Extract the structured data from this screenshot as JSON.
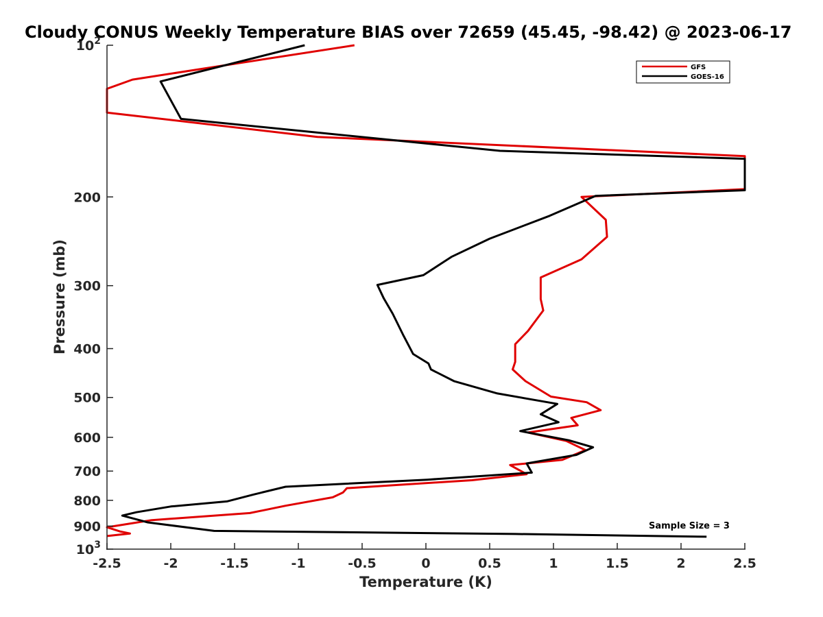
{
  "chart_data": {
    "type": "line",
    "title": "Cloudy CONUS Weekly Temperature BIAS over 72659 (45.45, -98.42) @ 2023-06-17",
    "xlabel": "Temperature (K)",
    "ylabel": "Pressure (mb)",
    "xlim": [
      -2.5,
      2.5
    ],
    "ylim": [
      100,
      1000
    ],
    "y_scale": "log",
    "y_reversed": true,
    "grid": false,
    "legend_position": "top-right",
    "x_ticks": [
      -2.5,
      -2,
      -1.5,
      -1,
      -0.5,
      0,
      0.5,
      1,
      1.5,
      2,
      2.5
    ],
    "x_tick_labels": [
      "-2.5",
      "-2",
      "-1.5",
      "-1",
      "-0.5",
      "0",
      "0.5",
      "1",
      "1.5",
      "2",
      "2.5"
    ],
    "y_ticks": [
      100,
      200,
      300,
      400,
      500,
      600,
      700,
      800,
      900,
      1000
    ],
    "y_tick_labels": [
      {
        "base": "10",
        "exp": "2"
      },
      {
        "base": "200",
        "exp": ""
      },
      {
        "base": "300",
        "exp": ""
      },
      {
        "base": "400",
        "exp": ""
      },
      {
        "base": "500",
        "exp": ""
      },
      {
        "base": "600",
        "exp": ""
      },
      {
        "base": "700",
        "exp": ""
      },
      {
        "base": "800",
        "exp": ""
      },
      {
        "base": "900",
        "exp": ""
      },
      {
        "base": "10",
        "exp": "3"
      }
    ],
    "annotation": "Sample Size = 3",
    "series": [
      {
        "name": "GFS",
        "color": "#e00000",
        "points": [
          [
            -0.56,
            100
          ],
          [
            -2.3,
            117
          ],
          [
            -2.5,
            122
          ],
          [
            -2.5,
            136
          ],
          [
            -0.85,
            152
          ],
          [
            2.5,
            166
          ],
          [
            2.5,
            193
          ],
          [
            1.22,
            200
          ],
          [
            1.41,
            222
          ],
          [
            1.42,
            240
          ],
          [
            1.22,
            266
          ],
          [
            0.9,
            289
          ],
          [
            0.9,
            319
          ],
          [
            0.92,
            336
          ],
          [
            0.8,
            369
          ],
          [
            0.7,
            392
          ],
          [
            0.7,
            425
          ],
          [
            0.68,
            440
          ],
          [
            0.78,
            464
          ],
          [
            0.98,
            498
          ],
          [
            1.26,
            511
          ],
          [
            1.37,
            530
          ],
          [
            1.14,
            549
          ],
          [
            1.19,
            568
          ],
          [
            0.8,
            587
          ],
          [
            1.1,
            610
          ],
          [
            1.25,
            636
          ],
          [
            1.07,
            665
          ],
          [
            0.66,
            681
          ],
          [
            0.79,
            710
          ],
          [
            0.36,
            730
          ],
          [
            -0.62,
            757
          ],
          [
            -0.65,
            772
          ],
          [
            -0.73,
            789
          ],
          [
            -1.1,
            820
          ],
          [
            -1.38,
            848
          ],
          [
            -2.15,
            876
          ],
          [
            -2.5,
            905
          ],
          [
            -2.4,
            922
          ],
          [
            -2.32,
            931
          ],
          [
            -2.5,
            942
          ]
        ]
      },
      {
        "name": "GOES-16",
        "color": "#000000",
        "points": [
          [
            -0.95,
            100
          ],
          [
            -2.08,
            118
          ],
          [
            -1.92,
            140
          ],
          [
            0.58,
            162
          ],
          [
            2.5,
            168
          ],
          [
            2.5,
            194
          ],
          [
            1.33,
            199
          ],
          [
            0.97,
            218
          ],
          [
            0.5,
            242
          ],
          [
            0.2,
            263
          ],
          [
            -0.02,
            286
          ],
          [
            -0.38,
            299
          ],
          [
            -0.33,
            318
          ],
          [
            -0.26,
            341
          ],
          [
            -0.18,
            375
          ],
          [
            -0.1,
            410
          ],
          [
            0.02,
            428
          ],
          [
            0.04,
            440
          ],
          [
            0.22,
            464
          ],
          [
            0.56,
            491
          ],
          [
            1.03,
            515
          ],
          [
            0.9,
            540
          ],
          [
            1.04,
            560
          ],
          [
            0.74,
            583
          ],
          [
            1.12,
            608
          ],
          [
            1.31,
            628
          ],
          [
            1.18,
            650
          ],
          [
            0.79,
            676
          ],
          [
            0.83,
            705
          ],
          [
            0.01,
            728
          ],
          [
            -1.1,
            752
          ],
          [
            -1.35,
            779
          ],
          [
            -1.56,
            804
          ],
          [
            -2.0,
            823
          ],
          [
            -2.27,
            845
          ],
          [
            -2.38,
            858
          ],
          [
            -2.18,
            885
          ],
          [
            -1.66,
            920
          ],
          [
            0.7,
            933
          ],
          [
            2.2,
            945
          ]
        ]
      }
    ]
  }
}
